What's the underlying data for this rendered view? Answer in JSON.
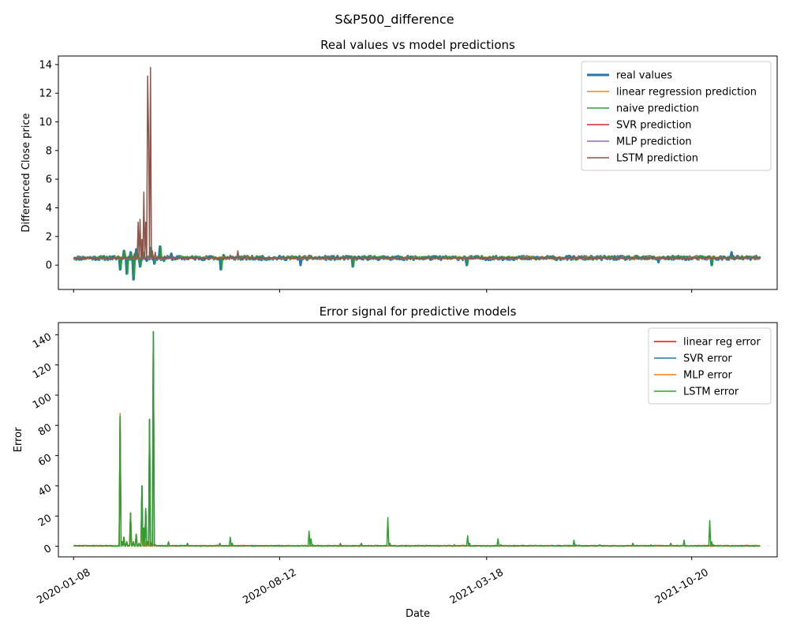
{
  "figure": {
    "suptitle": "S&P500_difference"
  },
  "colors": {
    "blue": "#1f77b4",
    "orange": "#ff7f0e",
    "green": "#2ca02c",
    "red": "#d62728",
    "purple": "#9467bd",
    "brown": "#8c564b",
    "pure_red": "#ff0000"
  },
  "chart_data": [
    {
      "type": "line",
      "title": "Real values vs model predictions",
      "xlabel": "",
      "ylabel": "Differenced Close price",
      "x_range": [
        "2019-12-23",
        "2022-01-18"
      ],
      "ylim": [
        -1.7,
        14.6
      ],
      "yticks": [
        0,
        2,
        4,
        6,
        8,
        10,
        12,
        14
      ],
      "xticks": [
        "2020-01-08",
        "2020-08-12",
        "2021-03-18",
        "2021-10-20"
      ],
      "legend_position": "top-right",
      "series": [
        {
          "name": "real values",
          "color_key": "blue",
          "width": 3,
          "baseline": 0.5,
          "noise": 0.14,
          "seed": 11,
          "points": [
            [
              "2020-02-24",
              0.6
            ],
            [
              "2020-02-26",
              -0.3
            ],
            [
              "2020-03-01",
              1.0
            ],
            [
              "2020-03-04",
              -0.6
            ],
            [
              "2020-03-08",
              0.9
            ],
            [
              "2020-03-11",
              -1.0
            ],
            [
              "2020-03-14",
              1.1
            ],
            [
              "2020-03-18",
              -0.1
            ],
            [
              "2020-03-21",
              0.9
            ],
            [
              "2020-03-25",
              0.3
            ],
            [
              "2020-03-29",
              1.2
            ],
            [
              "2020-04-02",
              0.1
            ],
            [
              "2020-04-08",
              1.3
            ],
            [
              "2020-04-12",
              0.3
            ],
            [
              "2020-04-20",
              0.8
            ],
            [
              "2020-06-11",
              -0.3
            ],
            [
              "2020-06-14",
              0.7
            ],
            [
              "2020-09-03",
              0.0
            ],
            [
              "2020-10-28",
              -0.1
            ],
            [
              "2021-02-25",
              0.0
            ],
            [
              "2021-09-15",
              0.2
            ],
            [
              "2021-11-10",
              0.0
            ],
            [
              "2021-12-01",
              0.9
            ]
          ]
        },
        {
          "name": "linear regression prediction",
          "color_key": "orange",
          "width": 1.5,
          "baseline": 0.5,
          "noise": 0.1,
          "seed": 23,
          "points": []
        },
        {
          "name": "naive prediction",
          "color_key": "green",
          "width": 1.5,
          "baseline": 0.5,
          "noise": 0.14,
          "seed": 37,
          "points": [
            [
              "2020-02-25",
              0.6
            ],
            [
              "2020-02-27",
              -0.3
            ],
            [
              "2020-03-02",
              1.0
            ],
            [
              "2020-03-05",
              -0.6
            ],
            [
              "2020-03-09",
              0.9
            ],
            [
              "2020-03-12",
              -1.0
            ],
            [
              "2020-03-15",
              1.1
            ],
            [
              "2020-03-19",
              -0.1
            ],
            [
              "2020-03-22",
              0.9
            ],
            [
              "2020-03-26",
              0.3
            ],
            [
              "2020-03-30",
              1.2
            ],
            [
              "2020-04-03",
              0.1
            ],
            [
              "2020-04-09",
              1.3
            ],
            [
              "2020-04-13",
              0.3
            ],
            [
              "2020-06-12",
              -0.3
            ],
            [
              "2020-06-15",
              0.7
            ],
            [
              "2020-10-29",
              -0.1
            ],
            [
              "2021-02-26",
              0.0
            ],
            [
              "2021-11-11",
              0.0
            ]
          ]
        },
        {
          "name": "SVR prediction",
          "color_key": "red",
          "width": 1.5,
          "baseline": 0.5,
          "noise": 0.04,
          "seed": 41,
          "points": []
        },
        {
          "name": "MLP prediction",
          "color_key": "purple",
          "width": 1.5,
          "baseline": 0.5,
          "noise": 0.04,
          "seed": 53,
          "points": []
        },
        {
          "name": "LSTM prediction",
          "color_key": "brown",
          "width": 1.5,
          "baseline": 0.5,
          "noise": 0.05,
          "seed": 67,
          "points": [
            [
              "2020-03-12",
              0.8
            ],
            [
              "2020-03-16",
              3.0
            ],
            [
              "2020-03-18",
              3.2
            ],
            [
              "2020-03-20",
              1.8
            ],
            [
              "2020-03-22",
              5.1
            ],
            [
              "2020-03-24",
              3.0
            ],
            [
              "2020-03-26",
              13.2
            ],
            [
              "2020-03-27",
              9.2
            ],
            [
              "2020-03-29",
              13.8
            ],
            [
              "2020-03-31",
              1.0
            ],
            [
              "2020-04-03",
              0.9
            ],
            [
              "2020-04-06",
              0.6
            ],
            [
              "2020-06-21",
              0.7
            ],
            [
              "2020-06-29",
              1.0
            ],
            [
              "2020-07-03",
              0.5
            ]
          ]
        }
      ]
    },
    {
      "type": "line",
      "title": "Error signal for predictive models",
      "xlabel": "Date",
      "ylabel": "Error",
      "x_range": [
        "2019-12-23",
        "2022-01-18"
      ],
      "ylim": [
        -7,
        148
      ],
      "yticks": [
        0,
        20,
        40,
        60,
        80,
        100,
        120,
        140
      ],
      "xticks": [
        "2020-01-08",
        "2020-08-12",
        "2021-03-18",
        "2021-10-20"
      ],
      "legend_position": "top-right",
      "series": [
        {
          "name": "linear reg error",
          "color_key": "pure_red",
          "width": 1.5,
          "baseline": 0.3,
          "noise": 0.3,
          "seed": 71,
          "points": [
            [
              "2020-02-24",
              0.5
            ],
            [
              "2020-02-26",
              86
            ],
            [
              "2020-02-28",
              3
            ],
            [
              "2020-03-01",
              6
            ],
            [
              "2020-03-04",
              3
            ],
            [
              "2020-03-08",
              22
            ],
            [
              "2020-03-11",
              3
            ],
            [
              "2020-03-14",
              8
            ],
            [
              "2020-03-17",
              2
            ],
            [
              "2020-03-20",
              40
            ],
            [
              "2020-03-22",
              12
            ],
            [
              "2020-03-24",
              25
            ],
            [
              "2020-03-26",
              3
            ],
            [
              "2020-03-28",
              84
            ],
            [
              "2020-03-30",
              2
            ],
            [
              "2020-04-01",
              142
            ],
            [
              "2020-04-03",
              1
            ]
          ]
        },
        {
          "name": "SVR error",
          "color_key": "blue",
          "width": 1.5,
          "baseline": 0.3,
          "noise": 0.3,
          "seed": 73,
          "points": [
            [
              "2020-02-24",
              0.5
            ],
            [
              "2020-02-26",
              86
            ],
            [
              "2020-02-28",
              3
            ],
            [
              "2020-03-01",
              6
            ],
            [
              "2020-03-04",
              3
            ],
            [
              "2020-03-08",
              22
            ],
            [
              "2020-03-11",
              3
            ],
            [
              "2020-03-14",
              8
            ],
            [
              "2020-03-17",
              2
            ],
            [
              "2020-03-20",
              40
            ],
            [
              "2020-03-22",
              12
            ],
            [
              "2020-03-24",
              25
            ],
            [
              "2020-03-26",
              3
            ],
            [
              "2020-03-28",
              84
            ],
            [
              "2020-03-30",
              2
            ],
            [
              "2020-04-01",
              142
            ],
            [
              "2020-04-03",
              1
            ]
          ]
        },
        {
          "name": "MLP error",
          "color_key": "orange",
          "width": 1.5,
          "baseline": 0.3,
          "noise": 0.3,
          "seed": 79,
          "points": [
            [
              "2020-02-24",
              0.5
            ],
            [
              "2020-02-26",
              88
            ],
            [
              "2020-02-28",
              3
            ],
            [
              "2020-03-01",
              6
            ],
            [
              "2020-03-04",
              3
            ],
            [
              "2020-03-08",
              22
            ],
            [
              "2020-03-11",
              3
            ],
            [
              "2020-03-14",
              8
            ],
            [
              "2020-03-17",
              2
            ],
            [
              "2020-03-20",
              12
            ],
            [
              "2020-03-23",
              5
            ],
            [
              "2020-03-26",
              2
            ],
            [
              "2020-03-29",
              4
            ],
            [
              "2020-04-01",
              1
            ],
            [
              "2020-04-03",
              1
            ]
          ]
        },
        {
          "name": "LSTM error",
          "color_key": "green",
          "width": 1.5,
          "baseline": 0.3,
          "noise": 0.3,
          "seed": 83,
          "points": [
            [
              "2020-02-24",
              0.5
            ],
            [
              "2020-02-26",
              86
            ],
            [
              "2020-02-28",
              3
            ],
            [
              "2020-03-01",
              6
            ],
            [
              "2020-03-04",
              3
            ],
            [
              "2020-03-08",
              22
            ],
            [
              "2020-03-11",
              3
            ],
            [
              "2020-03-14",
              8
            ],
            [
              "2020-03-17",
              2
            ],
            [
              "2020-03-20",
              40
            ],
            [
              "2020-03-22",
              12
            ],
            [
              "2020-03-24",
              25
            ],
            [
              "2020-03-26",
              3
            ],
            [
              "2020-03-28",
              84
            ],
            [
              "2020-03-30",
              2
            ],
            [
              "2020-04-01",
              142
            ],
            [
              "2020-04-03",
              1
            ],
            [
              "2020-04-17",
              3
            ],
            [
              "2020-05-07",
              2
            ],
            [
              "2020-06-10",
              2
            ],
            [
              "2020-06-21",
              6
            ],
            [
              "2020-06-23",
              2
            ],
            [
              "2020-09-12",
              10
            ],
            [
              "2020-09-14",
              5
            ],
            [
              "2020-09-16",
              1
            ],
            [
              "2020-10-15",
              2
            ],
            [
              "2020-11-06",
              2
            ],
            [
              "2020-12-04",
              19
            ],
            [
              "2020-12-06",
              2
            ],
            [
              "2021-01-06",
              0.5
            ],
            [
              "2021-02-12",
              1
            ],
            [
              "2021-02-26",
              7
            ],
            [
              "2021-02-28",
              2
            ],
            [
              "2021-03-30",
              5
            ],
            [
              "2021-04-02",
              1
            ],
            [
              "2021-06-18",
              4
            ],
            [
              "2021-06-20",
              1
            ],
            [
              "2021-07-15",
              1
            ],
            [
              "2021-08-19",
              2
            ],
            [
              "2021-09-07",
              1
            ],
            [
              "2021-09-28",
              2
            ],
            [
              "2021-10-12",
              4
            ],
            [
              "2021-11-08",
              17
            ],
            [
              "2021-11-10",
              3
            ],
            [
              "2021-11-12",
              1
            ],
            [
              "2021-12-10",
              0.5
            ]
          ]
        }
      ]
    }
  ]
}
